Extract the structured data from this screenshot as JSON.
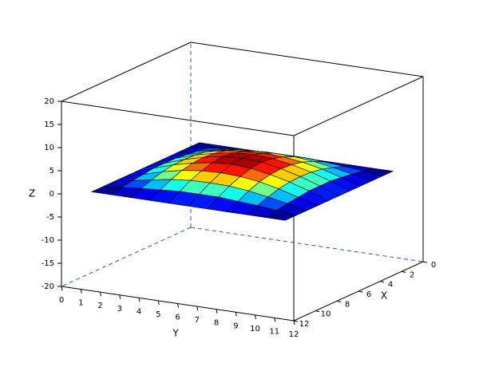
{
  "chart_data": {
    "type": "surface",
    "x_label": "X",
    "y_label": "Y",
    "z_label": "Z",
    "x": [
      1,
      2,
      3,
      4,
      5,
      6,
      7,
      8,
      9,
      10,
      11
    ],
    "y": [
      1,
      2,
      3,
      4,
      5,
      6,
      7,
      8,
      9,
      10,
      11
    ],
    "z": [
      [
        0,
        0,
        0,
        0,
        0,
        0,
        0,
        0,
        0,
        0,
        0
      ],
      [
        0,
        0.5,
        0.9,
        1.2,
        1.5,
        1.5,
        1.5,
        1.2,
        0.9,
        0.5,
        0
      ],
      [
        0,
        0.9,
        1.7,
        2.4,
        2.8,
        2.9,
        2.8,
        2.4,
        1.7,
        0.9,
        0
      ],
      [
        0,
        1.2,
        2.4,
        3.3,
        3.8,
        4.0,
        3.8,
        3.3,
        2.4,
        1.2,
        0
      ],
      [
        0,
        1.5,
        2.8,
        3.8,
        4.5,
        4.8,
        4.5,
        3.8,
        2.8,
        1.5,
        0
      ],
      [
        0,
        1.5,
        2.9,
        4.0,
        4.8,
        5,
        4.8,
        4.0,
        2.9,
        1.5,
        0
      ],
      [
        0,
        1.5,
        2.8,
        3.8,
        4.5,
        4.8,
        4.5,
        3.8,
        2.8,
        1.5,
        0
      ],
      [
        0,
        1.2,
        2.4,
        3.3,
        3.8,
        4.0,
        3.8,
        3.3,
        2.4,
        1.2,
        0
      ],
      [
        0,
        0.9,
        1.7,
        2.4,
        2.8,
        2.9,
        2.8,
        2.4,
        1.7,
        0.9,
        0
      ],
      [
        0,
        0.5,
        0.9,
        1.2,
        1.5,
        1.5,
        1.5,
        1.2,
        0.9,
        0.5,
        0
      ],
      [
        0,
        0,
        0,
        0,
        0,
        0,
        0,
        0,
        0,
        0,
        0
      ]
    ],
    "xlim": [
      0,
      12
    ],
    "xticks": [
      0,
      2,
      4,
      6,
      8,
      10,
      12
    ],
    "ylim": [
      0,
      12
    ],
    "yticks": [
      0,
      1,
      2,
      3,
      4,
      5,
      6,
      7,
      8,
      9,
      10,
      11,
      12
    ],
    "zlim": [
      -20,
      20
    ],
    "zticks": [
      -20,
      -15,
      -10,
      -5,
      0,
      5,
      10,
      15,
      20
    ],
    "colormap": "jet",
    "edge_color": "#000000",
    "hidden_edge_color": "#1f5fbf"
  }
}
